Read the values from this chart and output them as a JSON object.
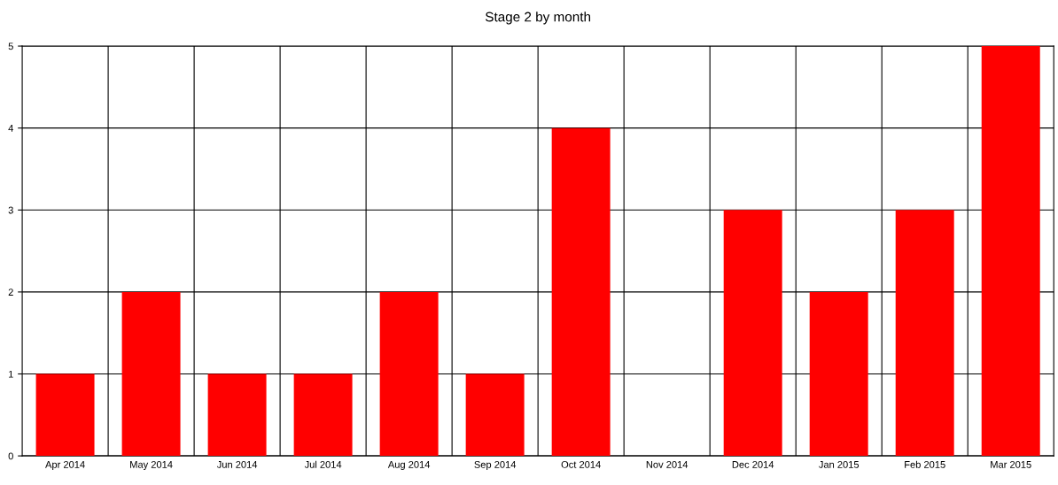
{
  "chart_data": {
    "type": "bar",
    "title": "Stage 2 by month",
    "categories": [
      "Apr 2014",
      "May 2014",
      "Jun 2014",
      "Jul 2014",
      "Aug 2014",
      "Sep 2014",
      "Oct 2014",
      "Nov 2014",
      "Dec 2014",
      "Jan 2015",
      "Feb 2015",
      "Mar 2015"
    ],
    "values": [
      1,
      2,
      1,
      1,
      2,
      1,
      4,
      0,
      3,
      2,
      3,
      5
    ],
    "color": "#ff0000",
    "ylim": [
      0,
      5
    ],
    "yticks": [
      0,
      1,
      2,
      3,
      4,
      5
    ],
    "grid": true
  }
}
